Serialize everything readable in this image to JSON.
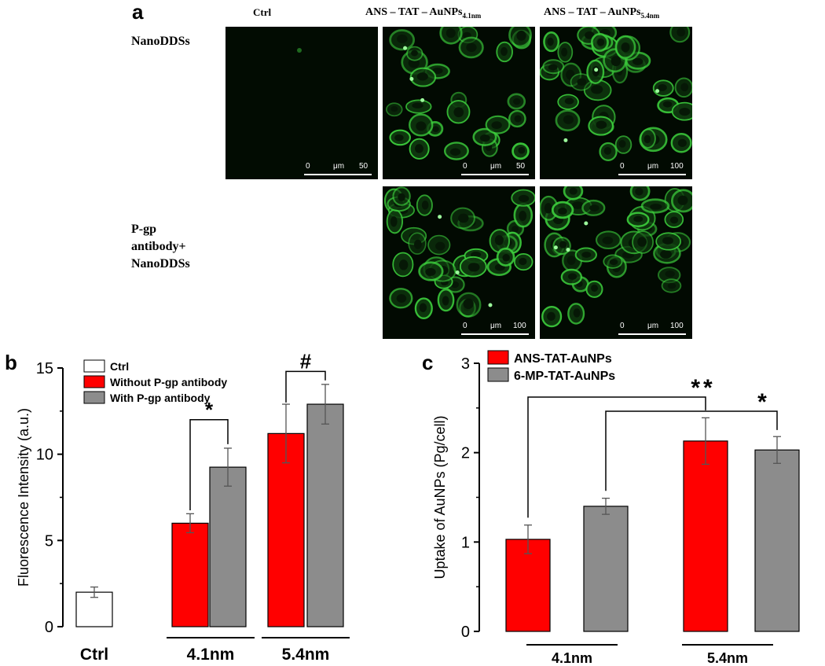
{
  "panel_a": {
    "letter": "a",
    "col_labels": [
      "Ctrl",
      "ANS – TAT – AuNPs",
      "ANS – TAT – AuNPs"
    ],
    "col_label_subs": [
      "",
      "4.1nm",
      "5.4nm"
    ],
    "row1_label": "NanoDDSs",
    "row2_label_lines": [
      "P-gp",
      "antibody+",
      "NanoDDSs"
    ],
    "scale_unit": "μm",
    "scale_zero": "0",
    "scale_values": [
      "50",
      "50",
      "100",
      "100",
      "100"
    ],
    "fluorescence_color": "#3ccd3c",
    "image_bg_color": "#020a02"
  },
  "chart_data": [
    {
      "type": "bar",
      "panel": "b",
      "ylabel": "Fluorescence Intensity (a.u.)",
      "ylim": [
        0,
        15
      ],
      "yticks": [
        "0",
        "5",
        "10",
        "15"
      ],
      "groups": [
        "Ctrl",
        "4.1nm",
        "5.4nm"
      ],
      "legend": [
        {
          "name": "Ctrl",
          "color": "#ffffff"
        },
        {
          "name": "Without P-gp antibody",
          "color": "#ff0000"
        },
        {
          "name": "With P-gp antibody",
          "color": "#8c8c8c"
        }
      ],
      "bars": [
        {
          "group": "Ctrl",
          "series": "Ctrl",
          "value": 2.0,
          "error": 0.3,
          "color": "#ffffff"
        },
        {
          "group": "4.1nm",
          "series": "Without P-gp antibody",
          "value": 6.0,
          "error": 0.55,
          "color": "#ff0000"
        },
        {
          "group": "4.1nm",
          "series": "With P-gp antibody",
          "value": 9.25,
          "error": 1.1,
          "color": "#8c8c8c"
        },
        {
          "group": "5.4nm",
          "series": "Without P-gp antibody",
          "value": 11.2,
          "error": 1.7,
          "color": "#ff0000"
        },
        {
          "group": "5.4nm",
          "series": "With P-gp antibody",
          "value": 12.9,
          "error": 1.15,
          "color": "#8c8c8c"
        }
      ],
      "annotations": [
        "*",
        "#"
      ]
    },
    {
      "type": "bar",
      "panel": "c",
      "ylabel": "Uptake of AuNPs (Pg/cell)",
      "ylim": [
        0,
        3
      ],
      "yticks": [
        "0",
        "1",
        "2",
        "3"
      ],
      "groups": [
        "4.1nm",
        "5.4nm"
      ],
      "legend": [
        {
          "name": "ANS-TAT-AuNPs",
          "color": "#ff0000"
        },
        {
          "name": "6-MP-TAT-AuNPs",
          "color": "#8c8c8c"
        }
      ],
      "bars": [
        {
          "group": "4.1nm",
          "series": "ANS-TAT-AuNPs",
          "value": 1.03,
          "error": 0.16,
          "color": "#ff0000"
        },
        {
          "group": "4.1nm",
          "series": "6-MP-TAT-AuNPs",
          "value": 1.4,
          "error": 0.09,
          "color": "#8c8c8c"
        },
        {
          "group": "5.4nm",
          "series": "ANS-TAT-AuNPs",
          "value": 2.13,
          "error": 0.26,
          "color": "#ff0000"
        },
        {
          "group": "5.4nm",
          "series": "6-MP-TAT-AuNPs",
          "value": 2.03,
          "error": 0.15,
          "color": "#8c8c8c"
        }
      ],
      "annotations": [
        "**",
        "*"
      ]
    }
  ]
}
